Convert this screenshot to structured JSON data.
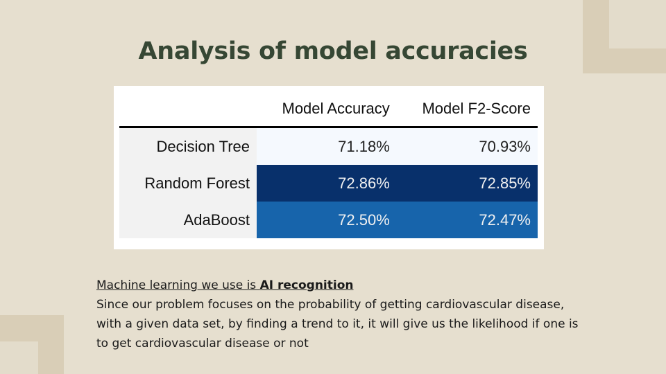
{
  "slide": {
    "title": "Analysis of model accuracies"
  },
  "table": {
    "columns": [
      "Model Accuracy",
      "Model F2-Score"
    ],
    "rows": [
      {
        "label": "Decision Tree",
        "accuracy": "71.18%",
        "f2": "70.93%"
      },
      {
        "label": "Random Forest",
        "accuracy": "72.86%",
        "f2": "72.85%"
      },
      {
        "label": "AdaBoost",
        "accuracy": "72.50%",
        "f2": "72.47%"
      }
    ],
    "colors": {
      "low": "#f5f9fe",
      "high": "#08306b",
      "mid": "#1764ab"
    }
  },
  "text": {
    "lead_prefix": "Machine learning we use is ",
    "lead_bold": "AI recognition",
    "body": "Since our problem focuses on the probability of getting cardiovascular disease, with a given data set, by finding a trend to it, it will give us the likelihood if one is to get cardiovascular disease or not"
  }
}
